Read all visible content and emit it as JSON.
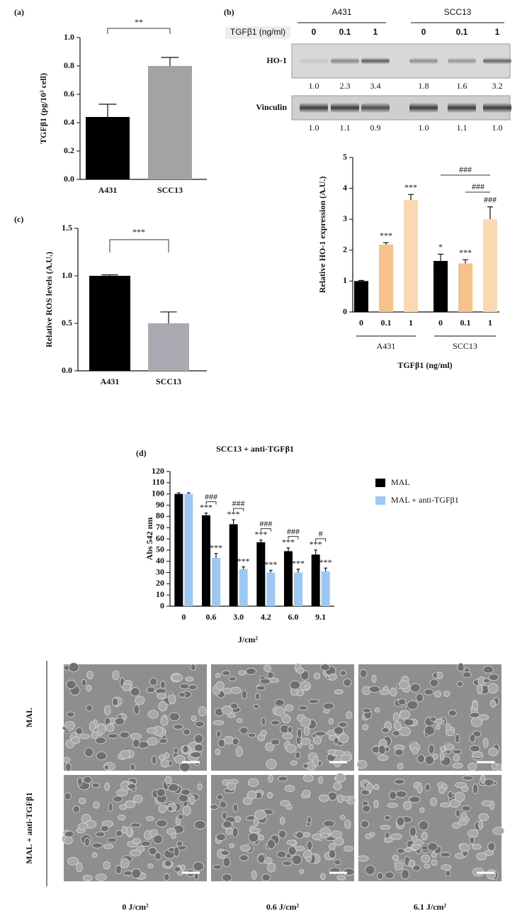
{
  "chart_data": [
    {
      "type": "bar",
      "label": "(a)",
      "categories": [
        "A431",
        "SCC13"
      ],
      "values": [
        0.44,
        0.8
      ],
      "errors": [
        0.09,
        0.06
      ],
      "colors": [
        "#000000",
        "#a3a3a3"
      ],
      "ylim": [
        0,
        1.0
      ],
      "yticks": [
        {
          "value": 0,
          "label": "0.0"
        },
        0.2,
        0.4,
        0.6,
        0.8,
        {
          "value": 1.0,
          "label": "1.0"
        }
      ],
      "ylabel": "TGFβ1 (pg/10³ cell)",
      "annotations": [
        "**"
      ]
    },
    {
      "type": "bar",
      "label": "(b)",
      "categories": [
        "0",
        "0.1",
        "1",
        "0",
        "0.1",
        "1"
      ],
      "groups": [
        "A431",
        "SCC13"
      ],
      "values": [
        1.0,
        2.18,
        3.62,
        1.65,
        1.57,
        3.0
      ],
      "errors": [
        0.02,
        0.06,
        0.18,
        0.22,
        0.12,
        0.4
      ],
      "colors": [
        "#000000",
        "#f7c28a",
        "#fbd9b3",
        "#000000",
        "#f7c28a",
        "#fbd9b3"
      ],
      "ylim": [
        0,
        5
      ],
      "yticks": [
        0,
        1,
        2,
        3,
        4,
        5
      ],
      "ylabel": "Relative HO-1 expression (A.U.)",
      "xlabel": "TGFβ1 (ng/ml)",
      "annotations": [
        "***",
        "***",
        "*",
        "***",
        "###",
        "###"
      ]
    },
    {
      "type": "bar",
      "label": "(c)",
      "categories": [
        "A431",
        "SCC13"
      ],
      "values": [
        1.0,
        0.5
      ],
      "errors": [
        0.01,
        0.12
      ],
      "colors": [
        "#000000",
        "#a9a9b1"
      ],
      "ylim": [
        0,
        1.5
      ],
      "yticks": [
        {
          "value": 0,
          "label": "0.0"
        },
        0.5,
        {
          "value": 1.0,
          "label": "1.0"
        },
        1.5
      ],
      "ylabel": "Relative ROS levels (A.U.)",
      "annotations": [
        "***"
      ]
    },
    {
      "type": "grouped-bar",
      "label": "(d)",
      "title": "SCC13 + anti-TGFβ1",
      "categories": [
        "0",
        "0.6",
        "3.0",
        "4.2",
        "6.0",
        "9.1"
      ],
      "series": [
        {
          "name": "MAL",
          "color": "#000000",
          "values": [
            100,
            81,
            73,
            57,
            49,
            46
          ],
          "errors": [
            1,
            2,
            4,
            2,
            3,
            4
          ]
        },
        {
          "name": "MAL + anti-TGFβ1",
          "color": "#9ec8f4",
          "values": [
            100,
            43,
            33,
            30,
            30,
            31
          ],
          "errors": [
            1,
            4,
            2,
            2,
            3,
            3
          ]
        }
      ],
      "ylim": [
        0,
        120
      ],
      "yticks": [
        0,
        10,
        20,
        30,
        40,
        50,
        60,
        70,
        80,
        90,
        100,
        110,
        120
      ],
      "ylabel": "Abs 542 nm",
      "xlabel": "J/cm²",
      "annotations": [
        "***",
        "***",
        "***",
        "***",
        "***",
        "***",
        "***",
        "***",
        "***",
        "***",
        "###",
        "###",
        "###",
        "###",
        "#"
      ]
    }
  ],
  "blot": {
    "groups": [
      "A431",
      "SCC13"
    ],
    "dose_label": "TGFβ1 (ng/ml)",
    "doses": [
      "0",
      "0.1",
      "1",
      "0",
      "0.1",
      "1"
    ],
    "rows": [
      {
        "name": "HO-1",
        "quant": [
          "1.0",
          "2.3",
          "3.4",
          "1.8",
          "1.6",
          "3.2"
        ]
      },
      {
        "name": "Vinculin",
        "quant": [
          "1.0",
          "1.1",
          "0.9",
          "1.0",
          "1.1",
          "1.0"
        ]
      }
    ]
  },
  "micrographs": {
    "rows": [
      "MAL",
      "MAL + anti-TGFβ1"
    ],
    "columns": [
      "0 J/cm²",
      "0.6 J/cm²",
      "6.1 J/cm²"
    ]
  }
}
